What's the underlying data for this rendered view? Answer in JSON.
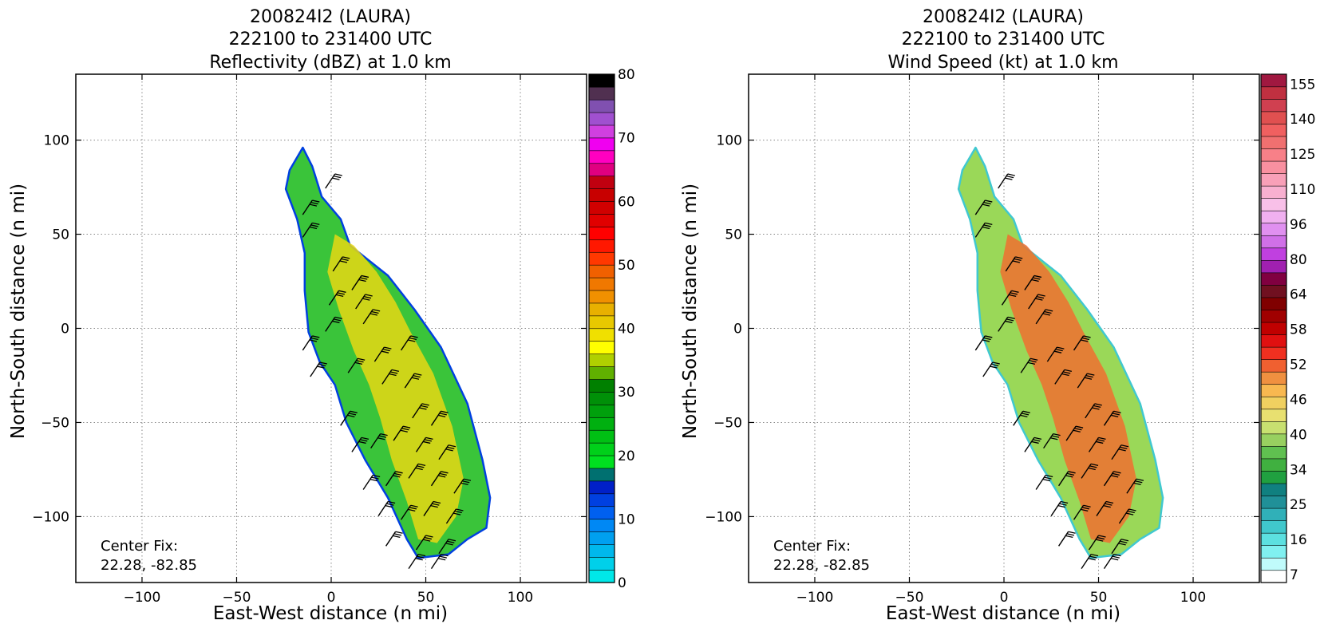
{
  "chart_data": [
    {
      "type": "heatmap",
      "title": [
        "200824I2 (LAURA)",
        "222100 to 231400 UTC",
        "Reflectivity (dBZ) at 1.0 km"
      ],
      "xlabel": "East-West distance (n mi)",
      "ylabel": "North-South distance (n mi)",
      "xlim": [
        -135,
        135
      ],
      "ylim": [
        -135,
        135
      ],
      "xticks": [
        -100,
        -50,
        0,
        50,
        100
      ],
      "yticks": [
        -100,
        -50,
        0,
        50,
        100
      ],
      "grid": true,
      "colorbar": {
        "ticks": [
          0,
          10,
          20,
          30,
          40,
          50,
          60,
          70,
          80
        ],
        "range": [
          0,
          80
        ],
        "colors": [
          "#00e8e8",
          "#00d0ea",
          "#00b8ec",
          "#00a0f0",
          "#0088f4",
          "#0060f0",
          "#0040e0",
          "#0020c8",
          "#007070",
          "#00e020",
          "#00d01a",
          "#00c014",
          "#00b010",
          "#00a00c",
          "#009008",
          "#008000",
          "#60b000",
          "#b0d000",
          "#ffff00",
          "#f0e000",
          "#e8c800",
          "#e8b000",
          "#f09000",
          "#f07800",
          "#f06000",
          "#ff3800",
          "#ff1800",
          "#ff0000",
          "#e00000",
          "#d00000",
          "#c80000",
          "#c00010",
          "#e00080",
          "#ff00c0",
          "#f000f0",
          "#d040e0",
          "#a050d0",
          "#8050b0",
          "#503050",
          "#000000"
        ]
      },
      "annotation": [
        "Center Fix:",
        "22.28, -82.85"
      ],
      "swath_fill": "#3ac43a",
      "core_fill": "#e8d814",
      "edge_accent": "#0040e0"
    },
    {
      "type": "heatmap",
      "title": [
        "200824I2 (LAURA)",
        "222100 to 231400 UTC",
        "Wind Speed (kt) at 1.0 km"
      ],
      "xlabel": "East-West distance (n mi)",
      "ylabel": "North-South distance (n mi)",
      "xlim": [
        -135,
        135
      ],
      "ylim": [
        -135,
        135
      ],
      "xticks": [
        -100,
        -50,
        0,
        50,
        100
      ],
      "yticks": [
        -100,
        -50,
        0,
        50,
        100
      ],
      "grid": true,
      "colorbar": {
        "ticks": [
          "7",
          "16",
          "25",
          "34",
          "40",
          "46",
          "52",
          "58",
          "64",
          "80",
          "96",
          "110",
          "125",
          "140",
          "155"
        ],
        "colors": [
          "#ffffff",
          "#c0fbfb",
          "#80f0f0",
          "#5ce0e0",
          "#40c8cc",
          "#30b0b8",
          "#209098",
          "#108080",
          "#20a040",
          "#40b040",
          "#60c050",
          "#98d060",
          "#c8e070",
          "#e8e070",
          "#f0d060",
          "#f8b850",
          "#f09040",
          "#f06030",
          "#f03020",
          "#e01010",
          "#c00000",
          "#a00000",
          "#800000",
          "#701020",
          "#800040",
          "#a020b0",
          "#c040e0",
          "#d070e8",
          "#e090f0",
          "#f0b0f0",
          "#f8c0e8",
          "#f8b0d0",
          "#f8a0b8",
          "#f890a0",
          "#f88088",
          "#f07070",
          "#f06060",
          "#e05050",
          "#d04050",
          "#c03040",
          "#a01840"
        ]
      },
      "annotation": [
        "Center Fix:",
        "22.28, -82.85"
      ],
      "swath_fill": "#9ad858",
      "core_fill": "#f07030",
      "edge_accent": "#40c8d0"
    }
  ]
}
